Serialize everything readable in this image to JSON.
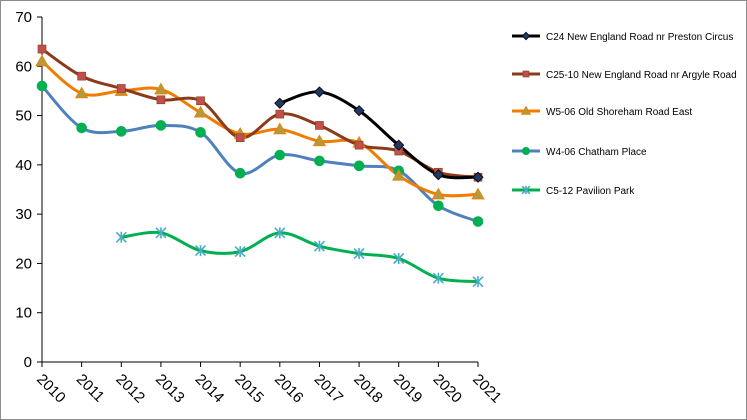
{
  "chart_data": {
    "type": "line",
    "title": "",
    "xlabel": "",
    "ylabel": "",
    "categories": [
      "2010",
      "2011",
      "2012",
      "2013",
      "2014",
      "2015",
      "2016",
      "2017",
      "2018",
      "2019",
      "2020",
      "2021"
    ],
    "ylim": [
      0,
      70
    ],
    "yticks": [
      "0",
      "10",
      "20",
      "30",
      "40",
      "50",
      "60",
      "70"
    ],
    "grid": false,
    "legend_position": "right",
    "series": [
      {
        "name": "C24 New England Road nr Preston Circus",
        "color": "#000000",
        "marker_color": "#1f3864",
        "marker": "diamond",
        "values": [
          null,
          null,
          null,
          null,
          null,
          null,
          52.5,
          54.8,
          51.0,
          44.0,
          38.0,
          37.5
        ]
      },
      {
        "name": "C25-10 New England Road nr Argyle Road",
        "color": "#8b3a1a",
        "marker_color": "#c0504d",
        "marker": "square",
        "values": [
          63.5,
          58.0,
          55.5,
          53.2,
          53.0,
          45.5,
          50.3,
          48.0,
          44.0,
          42.8,
          38.5,
          37.5
        ]
      },
      {
        "name": "W5-06 Old Shoreham Road East",
        "color": "#f07c00",
        "marker_color": "#b59a3c",
        "marker": "triangle",
        "values": [
          61.0,
          54.5,
          55.0,
          55.3,
          50.6,
          46.3,
          47.2,
          44.8,
          44.5,
          37.8,
          34.0,
          34.0
        ]
      },
      {
        "name": "W4-06 Chatham Place",
        "color": "#4f81bd",
        "marker_color": "#00b050",
        "marker": "circle",
        "values": [
          56.0,
          47.5,
          46.8,
          48.0,
          46.6,
          38.3,
          42.0,
          40.8,
          39.8,
          38.8,
          31.7,
          28.5
        ]
      },
      {
        "name": "C5-12 Pavilion Park",
        "color": "#00b050",
        "marker_color": "#4bacc6",
        "marker": "star",
        "values": [
          null,
          null,
          25.3,
          26.2,
          22.6,
          22.4,
          26.2,
          23.5,
          22.0,
          21.0,
          17.0,
          16.3
        ]
      }
    ]
  }
}
